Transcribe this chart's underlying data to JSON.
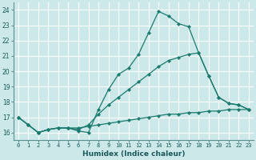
{
  "xlabel": "Humidex (Indice chaleur)",
  "bg_color": "#cce8e8",
  "grid_color": "#ffffff",
  "line_color": "#1a7a6e",
  "xlim": [
    -0.5,
    23.5
  ],
  "ylim": [
    15.5,
    24.5
  ],
  "yticks": [
    16,
    17,
    18,
    19,
    20,
    21,
    22,
    23,
    24
  ],
  "xticks": [
    0,
    1,
    2,
    3,
    4,
    5,
    6,
    7,
    8,
    9,
    10,
    11,
    12,
    13,
    14,
    15,
    16,
    17,
    18,
    19,
    20,
    21,
    22,
    23
  ],
  "series": [
    {
      "x": [
        0,
        1,
        2,
        3,
        4,
        5,
        6,
        7,
        8,
        9,
        10,
        11,
        12,
        13,
        14,
        15,
        16,
        17,
        18,
        19,
        20,
        21,
        22,
        23
      ],
      "y": [
        17.0,
        16.5,
        16.0,
        16.2,
        16.3,
        16.3,
        16.1,
        16.0,
        17.5,
        18.8,
        19.8,
        20.2,
        21.1,
        22.5,
        23.9,
        23.6,
        23.1,
        22.9,
        21.2,
        19.7,
        18.3,
        17.9,
        17.8,
        17.5
      ]
    },
    {
      "x": [
        0,
        1,
        2,
        3,
        4,
        5,
        6,
        7,
        8,
        9,
        10,
        11,
        12,
        13,
        14,
        15,
        16,
        17,
        18,
        19,
        20,
        21,
        22,
        23
      ],
      "y": [
        17.0,
        16.5,
        16.0,
        16.2,
        16.3,
        16.3,
        16.2,
        16.5,
        17.2,
        17.8,
        18.3,
        18.8,
        19.3,
        19.8,
        20.3,
        20.7,
        20.9,
        21.1,
        21.2,
        19.7,
        18.3,
        17.9,
        17.8,
        17.5
      ]
    },
    {
      "x": [
        0,
        1,
        2,
        3,
        4,
        5,
        6,
        7,
        8,
        9,
        10,
        11,
        12,
        13,
        14,
        15,
        16,
        17,
        18,
        19,
        20,
        21,
        22,
        23
      ],
      "y": [
        17.0,
        16.5,
        16.0,
        16.2,
        16.3,
        16.3,
        16.3,
        16.4,
        16.5,
        16.6,
        16.7,
        16.8,
        16.9,
        17.0,
        17.1,
        17.2,
        17.2,
        17.3,
        17.3,
        17.4,
        17.4,
        17.5,
        17.5,
        17.5
      ]
    }
  ]
}
